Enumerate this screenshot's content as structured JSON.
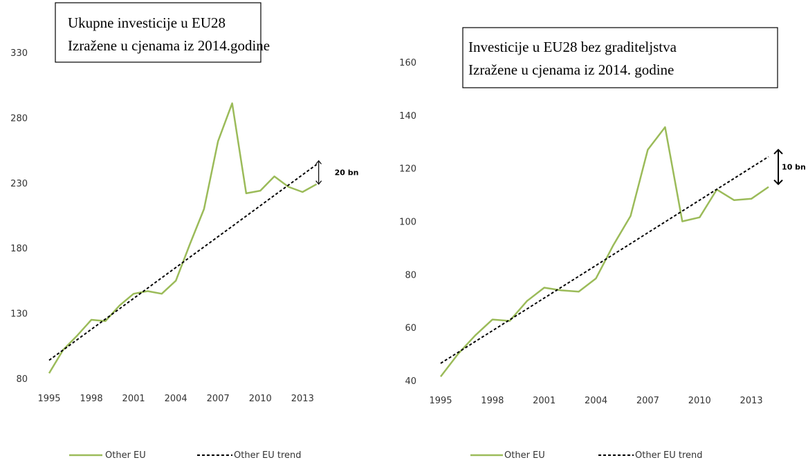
{
  "chart_data": [
    {
      "type": "line",
      "title_lines": [
        "Ukupne investicije u EU28",
        "Izražene u cjenama iz 2014.godine"
      ],
      "xlabel": "",
      "ylabel": "",
      "ylim": [
        80,
        330
      ],
      "yticks": [
        80,
        130,
        180,
        230,
        280,
        330
      ],
      "xticks": [
        1995,
        1998,
        2001,
        2004,
        2007,
        2010,
        2013
      ],
      "x": [
        1995,
        1996,
        1997,
        1998,
        1999,
        2000,
        2001,
        2002,
        2003,
        2004,
        2005,
        2006,
        2007,
        2008,
        2009,
        2010,
        2011,
        2012,
        2013,
        2014
      ],
      "series": [
        {
          "name": "Other EU",
          "color": "#9bbb59",
          "style": "solid",
          "values": [
            84,
            102,
            113,
            125,
            124,
            136,
            145,
            147,
            145,
            155,
            183,
            210,
            262,
            291,
            222,
            224,
            235,
            227,
            223,
            229
          ]
        },
        {
          "name": "Other EU trend",
          "color": "#000000",
          "style": "dashed",
          "values": [
            94,
            101.9,
            109.8,
            117.7,
            125.6,
            133.5,
            141.4,
            149.3,
            157.2,
            165.1,
            173,
            180.9,
            188.8,
            196.7,
            204.6,
            212.5,
            220.4,
            228.3,
            236.2,
            244.1
          ]
        }
      ],
      "annotation": {
        "text": "20 bn",
        "year": 2014,
        "from": 229,
        "to": 247
      },
      "legend": "bottom"
    },
    {
      "type": "line",
      "title_lines": [
        "Investicije u EU28 bez graditeljstva",
        "Izražene u cjenama iz 2014. godine"
      ],
      "xlabel": "",
      "ylabel": "",
      "ylim": [
        40,
        160
      ],
      "yticks": [
        40,
        60,
        80,
        100,
        120,
        140,
        160
      ],
      "xticks": [
        1995,
        1998,
        2001,
        2004,
        2007,
        2010,
        2013
      ],
      "x": [
        1995,
        1996,
        1997,
        1998,
        1999,
        2000,
        2001,
        2002,
        2003,
        2004,
        2005,
        2006,
        2007,
        2008,
        2009,
        2010,
        2011,
        2012,
        2013,
        2014
      ],
      "series": [
        {
          "name": "Other EU",
          "color": "#9bbb59",
          "style": "solid",
          "values": [
            41.5,
            50,
            57,
            63,
            62.5,
            70,
            75,
            74,
            73.5,
            78.5,
            91,
            102,
            127,
            135.5,
            100,
            101.5,
            112,
            108,
            108.5,
            113
          ]
        },
        {
          "name": "Other EU trend",
          "color": "#000000",
          "style": "dashed",
          "values": [
            46.5,
            50.6,
            54.7,
            58.8,
            62.9,
            67,
            71.1,
            75.2,
            79.3,
            83.4,
            87.5,
            91.6,
            95.7,
            99.8,
            103.9,
            108,
            112.1,
            116.2,
            120.3,
            124.4
          ]
        }
      ],
      "annotation": {
        "text": "10 bn",
        "year": 2014,
        "from": 114,
        "to": 127
      },
      "legend": "bottom"
    }
  ]
}
